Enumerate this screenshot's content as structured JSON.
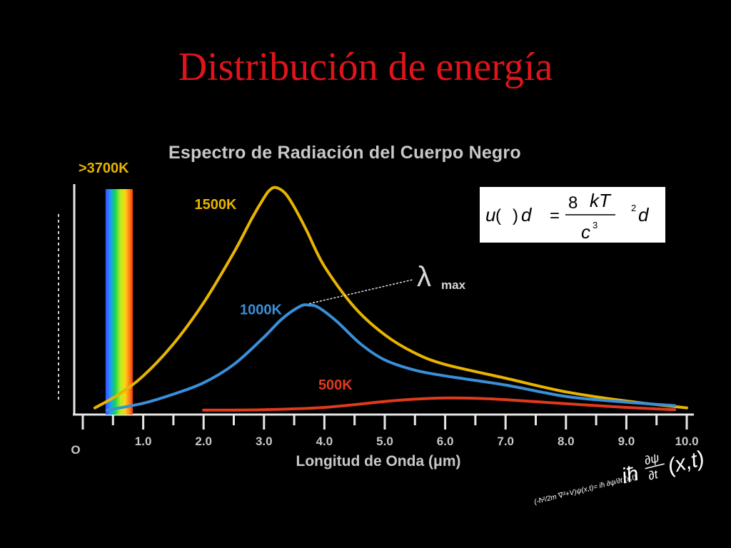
{
  "slide": {
    "title": "Distribución de energía"
  },
  "chart_data": {
    "type": "line",
    "title": "Espectro de Radiación del Cuerpo Negro",
    "xlabel": "Longitud de Onda (μm)",
    "ylabel": "",
    "xlim": [
      0,
      10
    ],
    "ylim": [
      0,
      100
    ],
    "x_ticks": [
      "O",
      "1.0",
      "2.0",
      "3.0",
      "4.0",
      "5.0",
      "6.0",
      "7.0",
      "8.0",
      "9.0",
      "10.0"
    ],
    "grid": false,
    "background": "#000000",
    "series": [
      {
        "name": "1500K",
        "color": "#e8b400",
        "x": [
          0.2,
          0.6,
          1.0,
          1.5,
          2.0,
          2.5,
          2.8,
          3.0,
          3.1,
          3.2,
          3.35,
          3.5,
          3.7,
          4.0,
          4.5,
          5.0,
          5.5,
          6.0,
          7.0,
          8.0,
          9.0,
          10.0
        ],
        "y": [
          2,
          8,
          16,
          30,
          48,
          70,
          85,
          94,
          97.5,
          98.5,
          96,
          90,
          80,
          64,
          46,
          34,
          26,
          21,
          15,
          9,
          5,
          2
        ]
      },
      {
        "name": "1000K",
        "color": "#3a8fd8",
        "x": [
          0.4,
          1.0,
          1.5,
          2.0,
          2.5,
          3.0,
          3.3,
          3.6,
          3.75,
          3.9,
          4.2,
          4.6,
          5.0,
          5.5,
          6.0,
          7.0,
          8.0,
          9.0,
          9.8
        ],
        "y": [
          1,
          4,
          8,
          13,
          21,
          33,
          41,
          46.5,
          47,
          46,
          40,
          30,
          23,
          18.5,
          16,
          12,
          7,
          4.5,
          3
        ]
      },
      {
        "name": "500K",
        "color": "#e03a1c",
        "x": [
          2.0,
          3.0,
          4.0,
          5.0,
          5.5,
          6.0,
          6.5,
          7.0,
          8.0,
          9.0,
          9.8
        ],
        "y": [
          1,
          1.2,
          2.2,
          4.8,
          5.8,
          6.3,
          6.2,
          5.6,
          3.8,
          2.2,
          1.2
        ]
      }
    ],
    "annotations": {
      "peak_label": "λ",
      "peak_subscript": "max",
      "peak_label_color": "#d8d8d8",
      "spectrum_label": ">3700K",
      "spectrum_label_color": "#e8b400",
      "spectrum_band_x": [
        0.4,
        0.85
      ]
    },
    "formula": {
      "u": "u",
      "paren_open": "(",
      "paren_close": ")",
      "d1": "d",
      "equals": "=",
      "numerator_8": "8",
      "numerator_kT": "kT",
      "denominator_c": "c",
      "denominator_exp": "3",
      "exp2": "2",
      "d2": "d"
    },
    "decor_equation": {
      "text": "(-ħ²/2m ∇²+V)ψ(x,t)= iħ ∂ψ/∂t (x,t)",
      "main": "iħ",
      "frac_top": "∂ψ",
      "frac_bottom": "∂t",
      "tail": "(x,t)"
    }
  }
}
